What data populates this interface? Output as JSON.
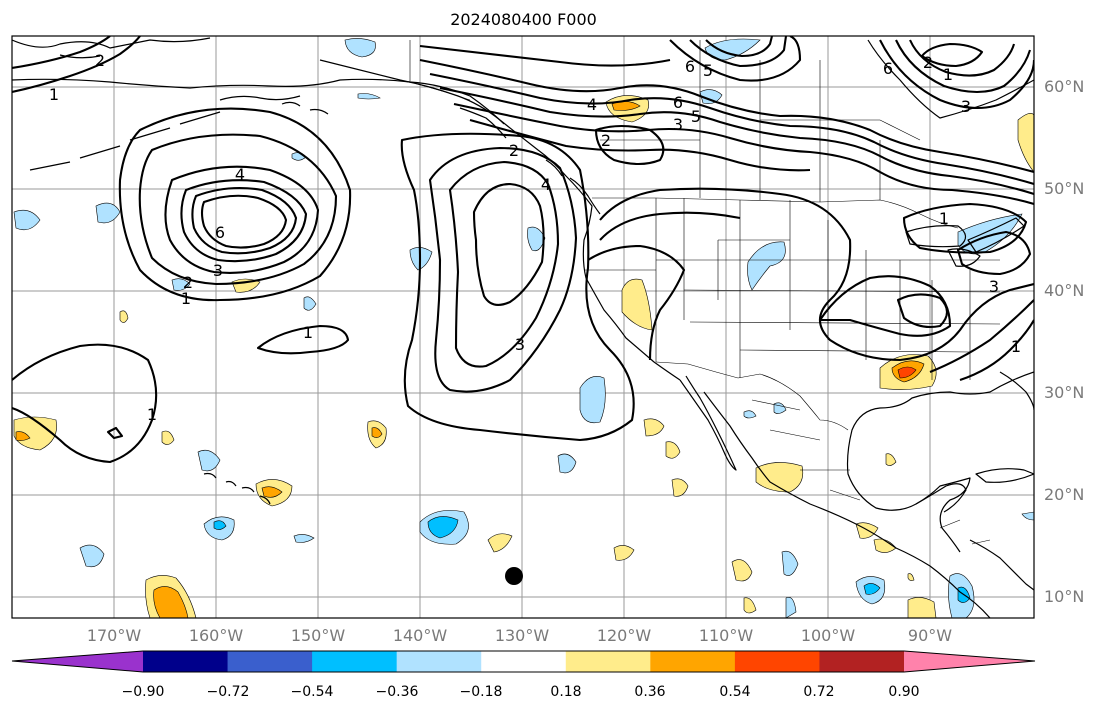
{
  "title": "2024080400 F000",
  "map": {
    "lat_labels": [
      "60°N",
      "50°N",
      "40°N",
      "30°N",
      "20°N",
      "10°N"
    ],
    "lon_labels": [
      "170°W",
      "160°W",
      "150°W",
      "140°W",
      "130°W",
      "120°W",
      "110°W",
      "100°W",
      "90°W"
    ],
    "contour_labels": [
      "1",
      "2",
      "3",
      "4",
      "5",
      "6"
    ],
    "marker": "black-dot"
  },
  "colorbar": {
    "colors": [
      "#9a32cd",
      "#00008b",
      "#3a5fcd",
      "#00bfff",
      "#b0e2ff",
      "#ffffff",
      "#ffec8b",
      "#ffa500",
      "#ff4500",
      "#b22222",
      "#ff82ab"
    ],
    "tick_labels": [
      "−0.90",
      "−0.72",
      "−0.54",
      "−0.36",
      "−0.18",
      "0.18",
      "0.36",
      "0.54",
      "0.72",
      "0.90"
    ]
  }
}
